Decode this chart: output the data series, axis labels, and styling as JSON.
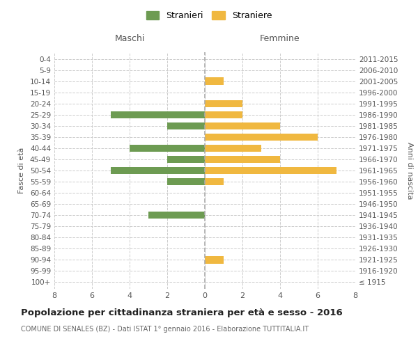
{
  "age_groups": [
    "100+",
    "95-99",
    "90-94",
    "85-89",
    "80-84",
    "75-79",
    "70-74",
    "65-69",
    "60-64",
    "55-59",
    "50-54",
    "45-49",
    "40-44",
    "35-39",
    "30-34",
    "25-29",
    "20-24",
    "15-19",
    "10-14",
    "5-9",
    "0-4"
  ],
  "birth_years": [
    "≤ 1915",
    "1916-1920",
    "1921-1925",
    "1926-1930",
    "1931-1935",
    "1936-1940",
    "1941-1945",
    "1946-1950",
    "1951-1955",
    "1956-1960",
    "1961-1965",
    "1966-1970",
    "1971-1975",
    "1976-1980",
    "1981-1985",
    "1986-1990",
    "1991-1995",
    "1996-2000",
    "2001-2005",
    "2006-2010",
    "2011-2015"
  ],
  "maschi": [
    0,
    0,
    0,
    0,
    0,
    0,
    3,
    0,
    0,
    2,
    5,
    2,
    4,
    0,
    2,
    5,
    0,
    0,
    0,
    0,
    0
  ],
  "femmine": [
    0,
    0,
    1,
    0,
    0,
    0,
    0,
    0,
    0,
    1,
    7,
    4,
    3,
    6,
    4,
    2,
    2,
    0,
    1,
    0,
    0
  ],
  "maschi_color": "#6d9b52",
  "femmine_color": "#f0b840",
  "title": "Popolazione per cittadinanza straniera per età e sesso - 2016",
  "subtitle": "COMUNE DI SENALES (BZ) - Dati ISTAT 1° gennaio 2016 - Elaborazione TUTTITALIA.IT",
  "xlabel_left": "Maschi",
  "xlabel_right": "Femmine",
  "ylabel_left": "Fasce di età",
  "ylabel_right": "Anni di nascita",
  "legend_stranieri": "Stranieri",
  "legend_straniere": "Straniere",
  "xlim": 8,
  "background_color": "#ffffff",
  "grid_color": "#cccccc"
}
